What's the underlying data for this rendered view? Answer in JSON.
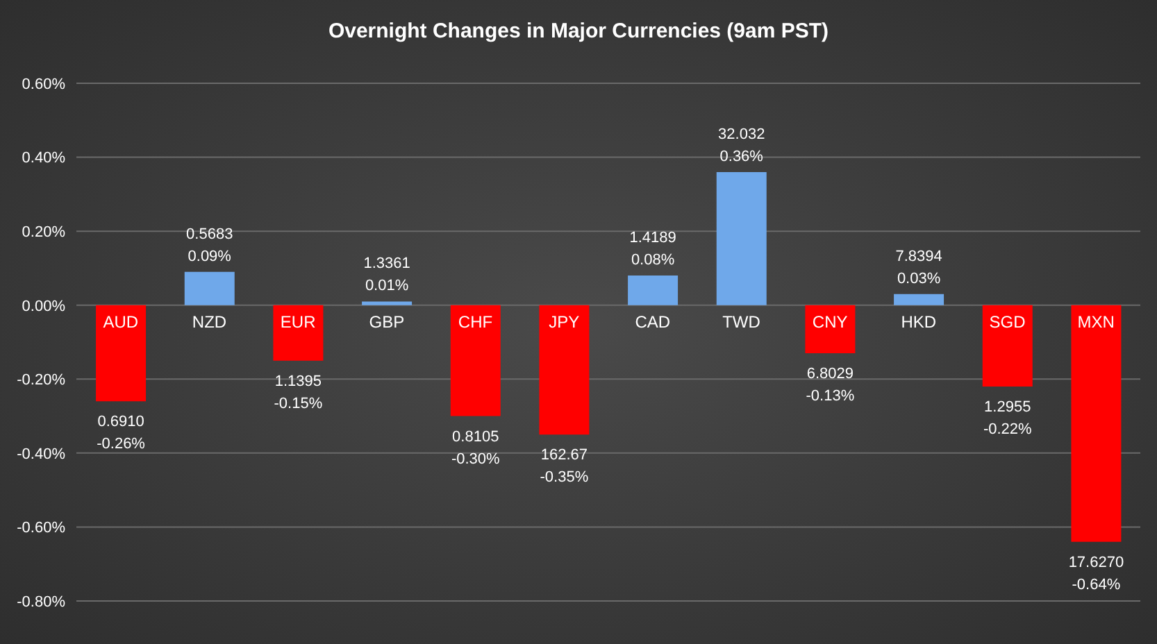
{
  "chart_data": {
    "type": "bar",
    "title": "Overnight Changes in Major Currencies (9am PST)",
    "categories": [
      "AUD",
      "NZD",
      "EUR",
      "GBP",
      "CHF",
      "JPY",
      "CAD",
      "TWD",
      "CNY",
      "HKD",
      "SGD",
      "MXN"
    ],
    "values": [
      -0.26,
      0.09,
      -0.15,
      0.01,
      -0.3,
      -0.35,
      0.08,
      0.36,
      -0.13,
      0.03,
      -0.22,
      -0.64
    ],
    "colors": [
      "#ff0000",
      "#6fa8ea",
      "#ff0000",
      "#6fa8ea",
      "#ff0000",
      "#ff0000",
      "#6fa8ea",
      "#6fa8ea",
      "#ff0000",
      "#6fa8ea",
      "#ff0000",
      "#ff0000"
    ],
    "value_labels": [
      "0.6910\n-0.26%",
      "0.5683\n0.09%",
      "1.1395\n-0.15%",
      "1.3361\n0.01%",
      "0.8105\n-0.30%",
      "162.67\n-0.35%",
      "1.4189\n0.08%",
      "32.032\n0.36%",
      "6.8029\n-0.13%",
      "7.8394\n0.03%",
      "1.2955\n-0.22%",
      "17.6270\n-0.64%"
    ],
    "ylim": [
      -0.8,
      0.6
    ],
    "yticks": [
      {
        "value": -0.8,
        "label": "-0.80%"
      },
      {
        "value": -0.6,
        "label": "-0.60%"
      },
      {
        "value": -0.4,
        "label": "-0.40%"
      },
      {
        "value": -0.2,
        "label": "-0.20%"
      },
      {
        "value": 0,
        "label": "0.00%"
      },
      {
        "value": 0.2,
        "label": "0.20%"
      },
      {
        "value": 0.4,
        "label": "0.40%"
      },
      {
        "value": 0.6,
        "label": "0.60%"
      }
    ],
    "grid": "y"
  }
}
